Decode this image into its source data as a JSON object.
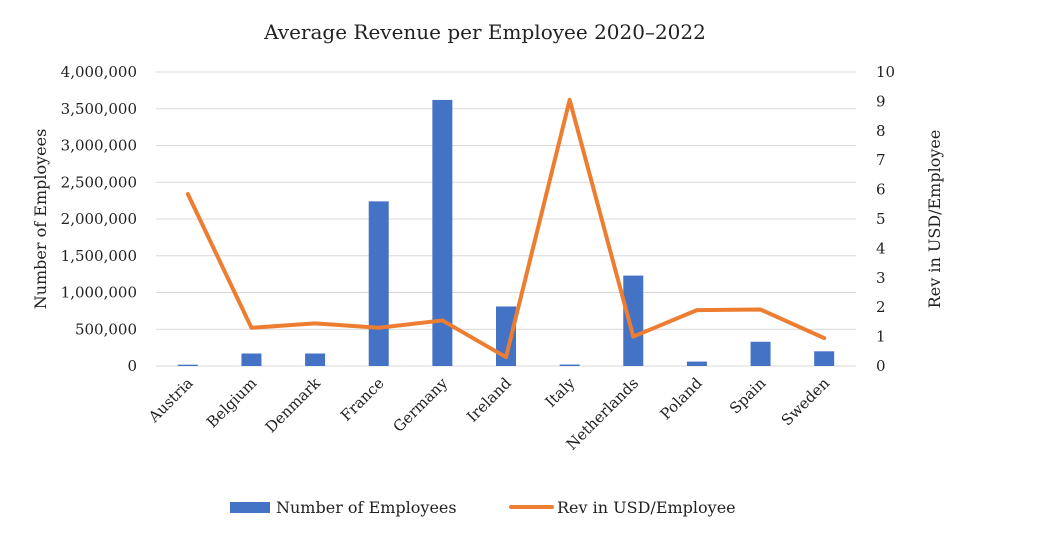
{
  "chart_data": {
    "type": "bar",
    "title": "Average Revenue per Employee 2020–2022",
    "categories": [
      "Austria",
      "Belgium",
      "Denmark",
      "France",
      "Germany",
      "Ireland",
      "Italy",
      "Netherlands",
      "Poland",
      "Spain",
      "Sweden"
    ],
    "series": [
      {
        "name": "Number of Employees",
        "type": "bar",
        "axis": "left",
        "color": "#4472C4",
        "values": [
          18000,
          170000,
          170000,
          2240000,
          3620000,
          810000,
          20000,
          1230000,
          60000,
          330000,
          200000
        ]
      },
      {
        "name": "Rev in USD/Employee",
        "type": "line",
        "axis": "right",
        "color": "#ED7D31",
        "values": [
          5.85,
          1.3,
          1.45,
          1.3,
          1.55,
          0.3,
          9.05,
          1.0,
          1.9,
          1.92,
          0.95
        ]
      }
    ],
    "y_left": {
      "label": "Number of Employees",
      "lim": [
        0,
        4000000
      ],
      "ticks": [
        "0",
        "500,000",
        "1,000,000",
        "1,500,000",
        "2,000,000",
        "2,500,000",
        "3,000,000",
        "3,500,000",
        "4,000,000"
      ]
    },
    "y_right": {
      "label": "Rev in USD/Employee",
      "lim": [
        0,
        10
      ],
      "ticks": [
        "0",
        "1",
        "2",
        "3",
        "4",
        "5",
        "6",
        "7",
        "8",
        "9",
        "10"
      ]
    },
    "grid": true,
    "legend": "bottom"
  }
}
